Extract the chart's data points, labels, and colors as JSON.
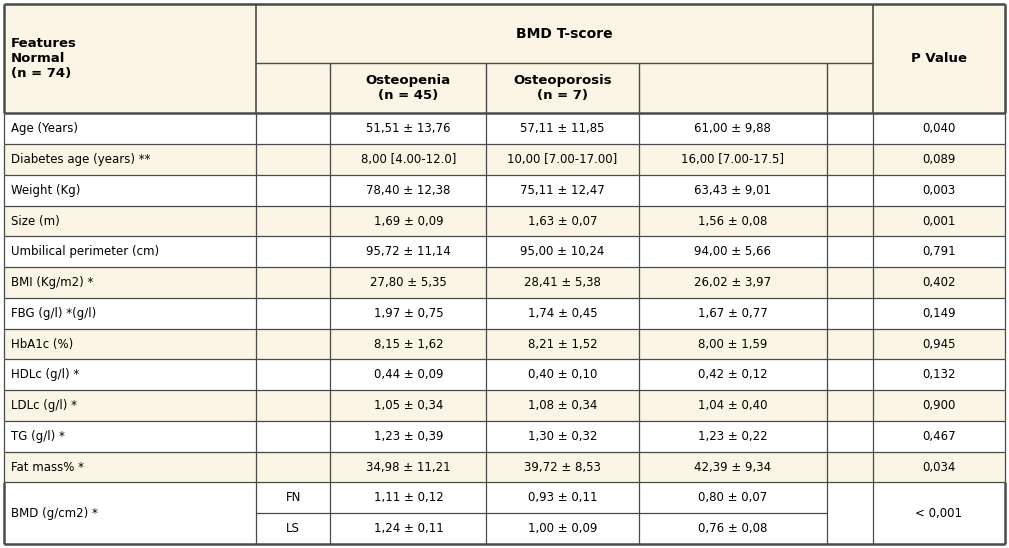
{
  "cream": "#faf5e4",
  "white": "#ffffff",
  "border": "#4a4a4a",
  "text": "#000000",
  "col_fracs": {
    "c0": 0.0,
    "c1": 0.252,
    "c2": 0.326,
    "c3": 0.482,
    "c4": 0.634,
    "c5": 0.822,
    "c6": 0.868,
    "c7": 1.0
  },
  "rows": [
    {
      "feature": "Age (Years)",
      "v1": "51,51 ± 13,76",
      "v2": "57,11 ± 11,85",
      "v3": "61,00 ± 9,88",
      "p": "0,040",
      "bg": "white"
    },
    {
      "feature": "Diabetes age (years) **",
      "v1": "8,00 [4.00-12.0]",
      "v2": "10,00 [7.00-17.00]",
      "v3": "16,00 [7.00-17.5]",
      "p": "0,089",
      "bg": "cream"
    },
    {
      "feature": "Weight (Kg)",
      "v1": "78,40 ± 12,38",
      "v2": "75,11 ± 12,47",
      "v3": "63,43 ± 9,01",
      "p": "0,003",
      "bg": "white"
    },
    {
      "feature": "Size (m)",
      "v1": "1,69 ± 0,09",
      "v2": "1,63 ± 0,07",
      "v3": "1,56 ± 0,08",
      "p": "0,001",
      "bg": "cream"
    },
    {
      "feature": "Umbilical perimeter (cm)",
      "v1": "95,72 ± 11,14",
      "v2": "95,00 ± 10,24",
      "v3": "94,00 ± 5,66",
      "p": "0,791",
      "bg": "white"
    },
    {
      "feature": "BMI (Kg/m2) *",
      "v1": "27,80 ± 5,35",
      "v2": "28,41 ± 5,38",
      "v3": "26,02 ± 3,97",
      "p": "0,402",
      "bg": "cream"
    },
    {
      "feature": "FBG (g/l) *(g/l)",
      "v1": "1,97 ± 0,75",
      "v2": "1,74 ± 0,45",
      "v3": "1,67 ± 0,77",
      "p": "0,149",
      "bg": "white"
    },
    {
      "feature": "HbA1c (%)",
      "v1": "8,15 ± 1,62",
      "v2": "8,21 ± 1,52",
      "v3": "8,00 ± 1,59",
      "p": "0,945",
      "bg": "cream"
    },
    {
      "feature": "HDLc (g/l) *",
      "v1": "0,44 ± 0,09",
      "v2": "0,40 ± 0,10",
      "v3": "0,42 ± 0,12",
      "p": "0,132",
      "bg": "white"
    },
    {
      "feature": "LDLc (g/l) *",
      "v1": "1,05 ± 0,34",
      "v2": "1,08 ± 0,34",
      "v3": "1,04 ± 0,40",
      "p": "0,900",
      "bg": "cream"
    },
    {
      "feature": "TG (g/l) *",
      "v1": "1,23 ± 0,39",
      "v2": "1,30 ± 0,32",
      "v3": "1,23 ± 0,22",
      "p": "0,467",
      "bg": "white"
    },
    {
      "feature": "Fat mass% *",
      "v1": "34,98 ± 11,21",
      "v2": "39,72 ± 8,53",
      "v3": "42,39 ± 9,34",
      "p": "0,034",
      "bg": "cream"
    }
  ],
  "bmd_feature": "BMD (g/cm2) *",
  "bmd_fn_rows": [
    {
      "label": "FN",
      "va1": "1,11 ± 0,12",
      "va2": "0,93 ± 0,11",
      "va3": "0,80 ± 0,07"
    },
    {
      "label": "LS",
      "va1": "1,24 ± 0,11",
      "va2": "1,00 ± 0,09",
      "va3": "0,76 ± 0,08"
    }
  ],
  "bmd_p": "< 0,001"
}
